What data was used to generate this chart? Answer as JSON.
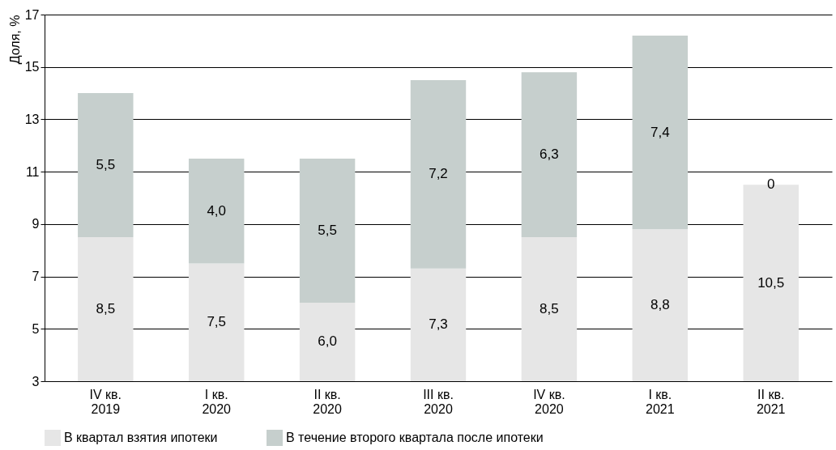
{
  "chart_data": {
    "type": "bar",
    "stacked": true,
    "ylabel": "Доля, %",
    "categories": [
      "IV кв.\n2019",
      "I кв.\n2020",
      "II кв.\n2020",
      "III кв.\n2020",
      "IV кв.\n2020",
      "I кв.\n2021",
      "II кв.\n2021"
    ],
    "series": [
      {
        "name": "В квартал взятия ипотеки",
        "color": "#e6e6e6",
        "values": [
          8.5,
          7.5,
          6.0,
          7.3,
          8.5,
          8.8,
          10.5
        ],
        "value_labels": [
          "8,5",
          "7,5",
          "6,0",
          "7,3",
          "8,5",
          "8,8",
          "10,5"
        ]
      },
      {
        "name": "В течение второго квартала после ипотеки",
        "color": "#c6cfcd",
        "values": [
          5.5,
          4.0,
          5.5,
          7.2,
          6.3,
          7.4,
          null
        ],
        "value_labels": [
          "5,5",
          "4,0",
          "5,5",
          "7,2",
          "6,3",
          "7,4",
          null
        ]
      }
    ],
    "annotations": [
      {
        "text": "0",
        "x": "II кв.\n2021",
        "y": 10.5
      }
    ],
    "ylim": [
      3,
      17
    ],
    "yticks": [
      3,
      5,
      7,
      9,
      11,
      13,
      15,
      17
    ],
    "grid": "y",
    "legend": "bottom left"
  }
}
